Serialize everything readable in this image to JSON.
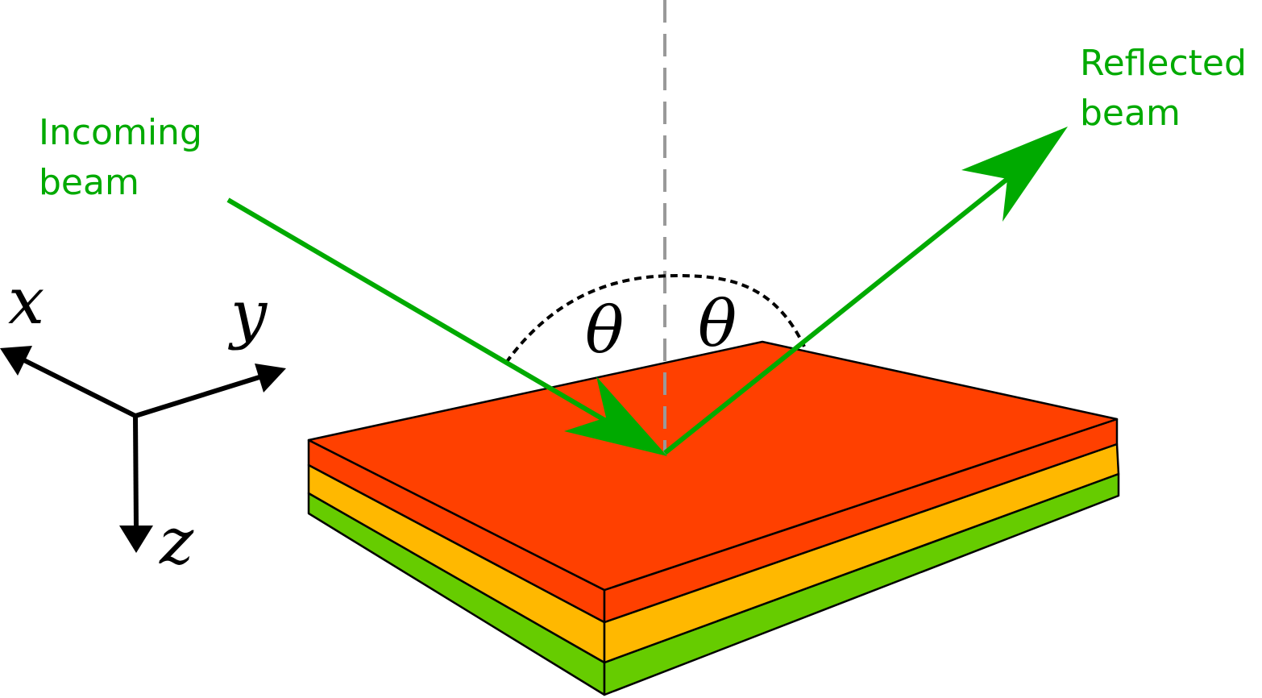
{
  "incoming_label": {
    "line1": "Incoming",
    "line2": "beam"
  },
  "reflected_label": {
    "line1": "Reflected",
    "line2": "beam"
  },
  "angle_symbol": "θ",
  "axes": {
    "x": "x",
    "y": "y",
    "z": "z"
  },
  "colors": {
    "beam": "#00aa00",
    "top_layer": "#ff4000",
    "middle_layer": "#ffb800",
    "bottom_layer": "#66cc00",
    "normal_line": "#999999",
    "arc": "#000000"
  }
}
